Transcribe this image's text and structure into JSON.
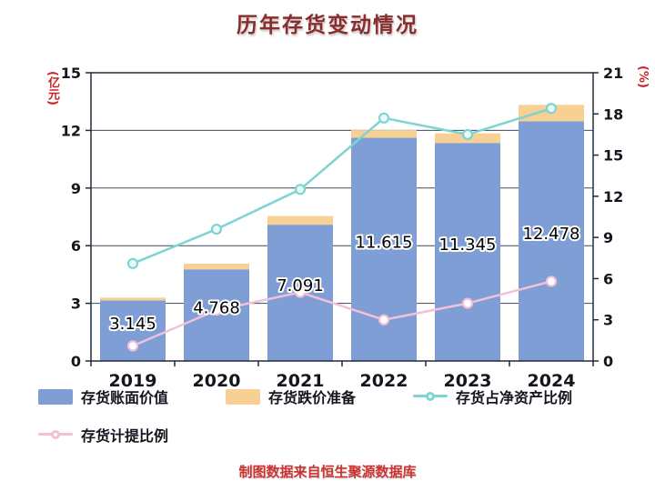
{
  "title": "历年存货变动情况",
  "footer": "制图数据来自恒生聚源数据库",
  "chart_data": {
    "type": "bar",
    "title": "历年存货变动情况",
    "categories": [
      "2019",
      "2020",
      "2021",
      "2022",
      "2023",
      "2024"
    ],
    "series": [
      {
        "name": "存货账面价值",
        "type": "bar",
        "axis": "left",
        "color": "#7f9ed6",
        "values": [
          3.145,
          4.768,
          7.091,
          11.615,
          11.345,
          12.478
        ],
        "data_labels": [
          "3.145",
          "4.768",
          "7.091",
          "11.615",
          "11.345",
          "12.478"
        ]
      },
      {
        "name": "存货跌价准备",
        "type": "bar-stack",
        "axis": "left",
        "color": "#f7d093",
        "values": [
          0.15,
          0.3,
          0.45,
          0.4,
          0.5,
          0.85
        ]
      },
      {
        "name": "存货占净资产比例",
        "type": "line",
        "axis": "right",
        "color": "#7dd4d2",
        "marker_fill": "#e9f9f8",
        "values": [
          7.1,
          9.6,
          12.5,
          17.7,
          16.5,
          18.4
        ]
      },
      {
        "name": "存货计提比例",
        "type": "line",
        "axis": "right",
        "color": "#f2c0d8",
        "marker_fill": "#ffffff",
        "values": [
          1.1,
          3.7,
          5.0,
          3.0,
          4.2,
          5.8
        ]
      }
    ],
    "left_axis": {
      "label": "(亿元)",
      "min": 0,
      "max": 15,
      "ticks": [
        0,
        3,
        6,
        9,
        12,
        15
      ]
    },
    "right_axis": {
      "label": "(%)",
      "min": 0,
      "max": 21,
      "ticks": [
        0,
        3,
        6,
        9,
        12,
        15,
        18,
        21
      ]
    },
    "grid": true,
    "legend_position": "bottom"
  }
}
